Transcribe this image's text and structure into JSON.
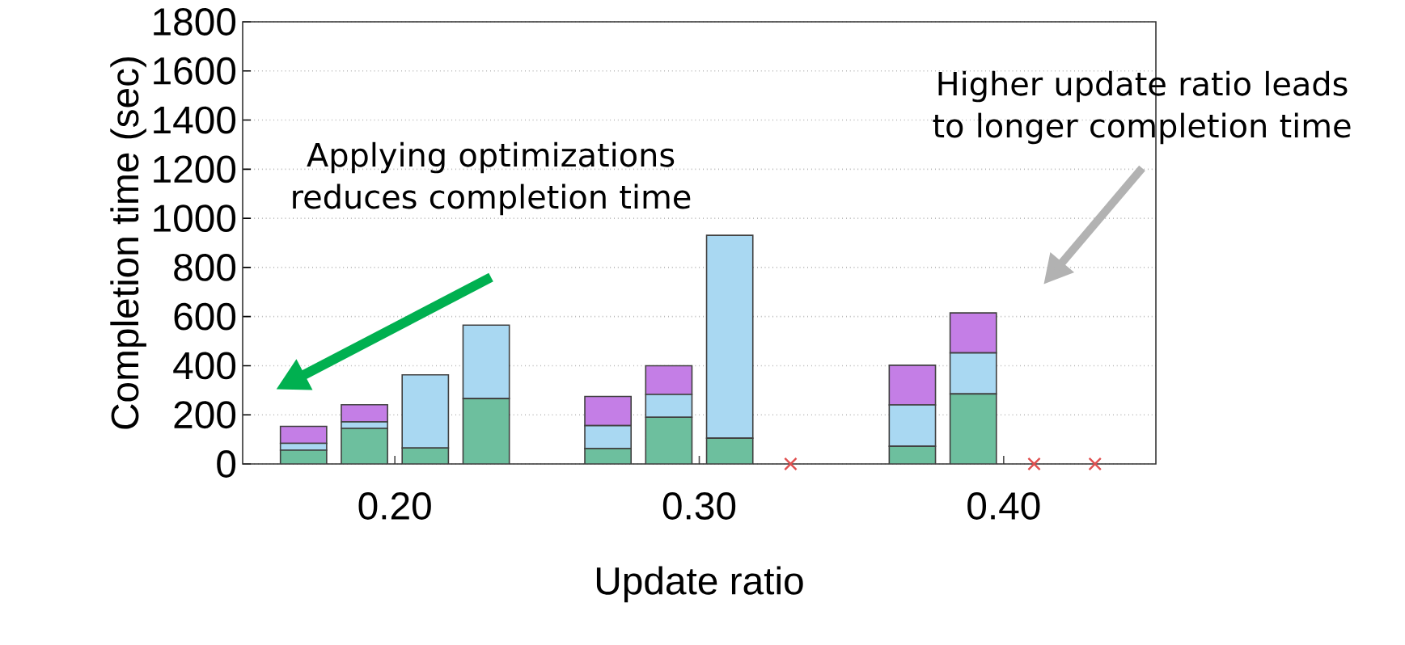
{
  "chart_data": {
    "type": "bar",
    "stacked": true,
    "xlabel": "Update ratio",
    "ylabel": "Completion time (sec)",
    "xlim": [
      0.15,
      0.45
    ],
    "xticks": [
      {
        "value": 0.2,
        "label": "0.20"
      },
      {
        "value": 0.3,
        "label": "0.30"
      },
      {
        "value": 0.4,
        "label": "0.40"
      }
    ],
    "ylim": [
      0,
      1800
    ],
    "yticks": [
      0,
      200,
      400,
      600,
      800,
      1000,
      1200,
      1400,
      1600,
      1800
    ],
    "grid": "y",
    "x": [
      0.17,
      0.19,
      0.21,
      0.23,
      0.27,
      0.29,
      0.31,
      0.37,
      0.39
    ],
    "series": [
      {
        "color": "#6dbf9e",
        "values": [
          56,
          145,
          65,
          266,
          63,
          190,
          105,
          72,
          285
        ]
      },
      {
        "color": "#a9d8f2",
        "values": [
          28,
          26,
          298,
          299,
          93,
          93,
          826,
          168,
          167
        ]
      },
      {
        "color": "#c47ee6",
        "values": [
          69,
          70,
          0,
          0,
          119,
          117,
          0,
          162,
          163
        ]
      },
      {
        "type": "scatter",
        "marker": "cross",
        "color": "#e05050",
        "x": [
          0.33,
          0.41,
          0.43
        ],
        "values": [
          0,
          0,
          0
        ]
      }
    ],
    "annotations": [
      "Applying optimizations reduces completion time",
      "Higher update ratio leads to longer completion time"
    ]
  }
}
